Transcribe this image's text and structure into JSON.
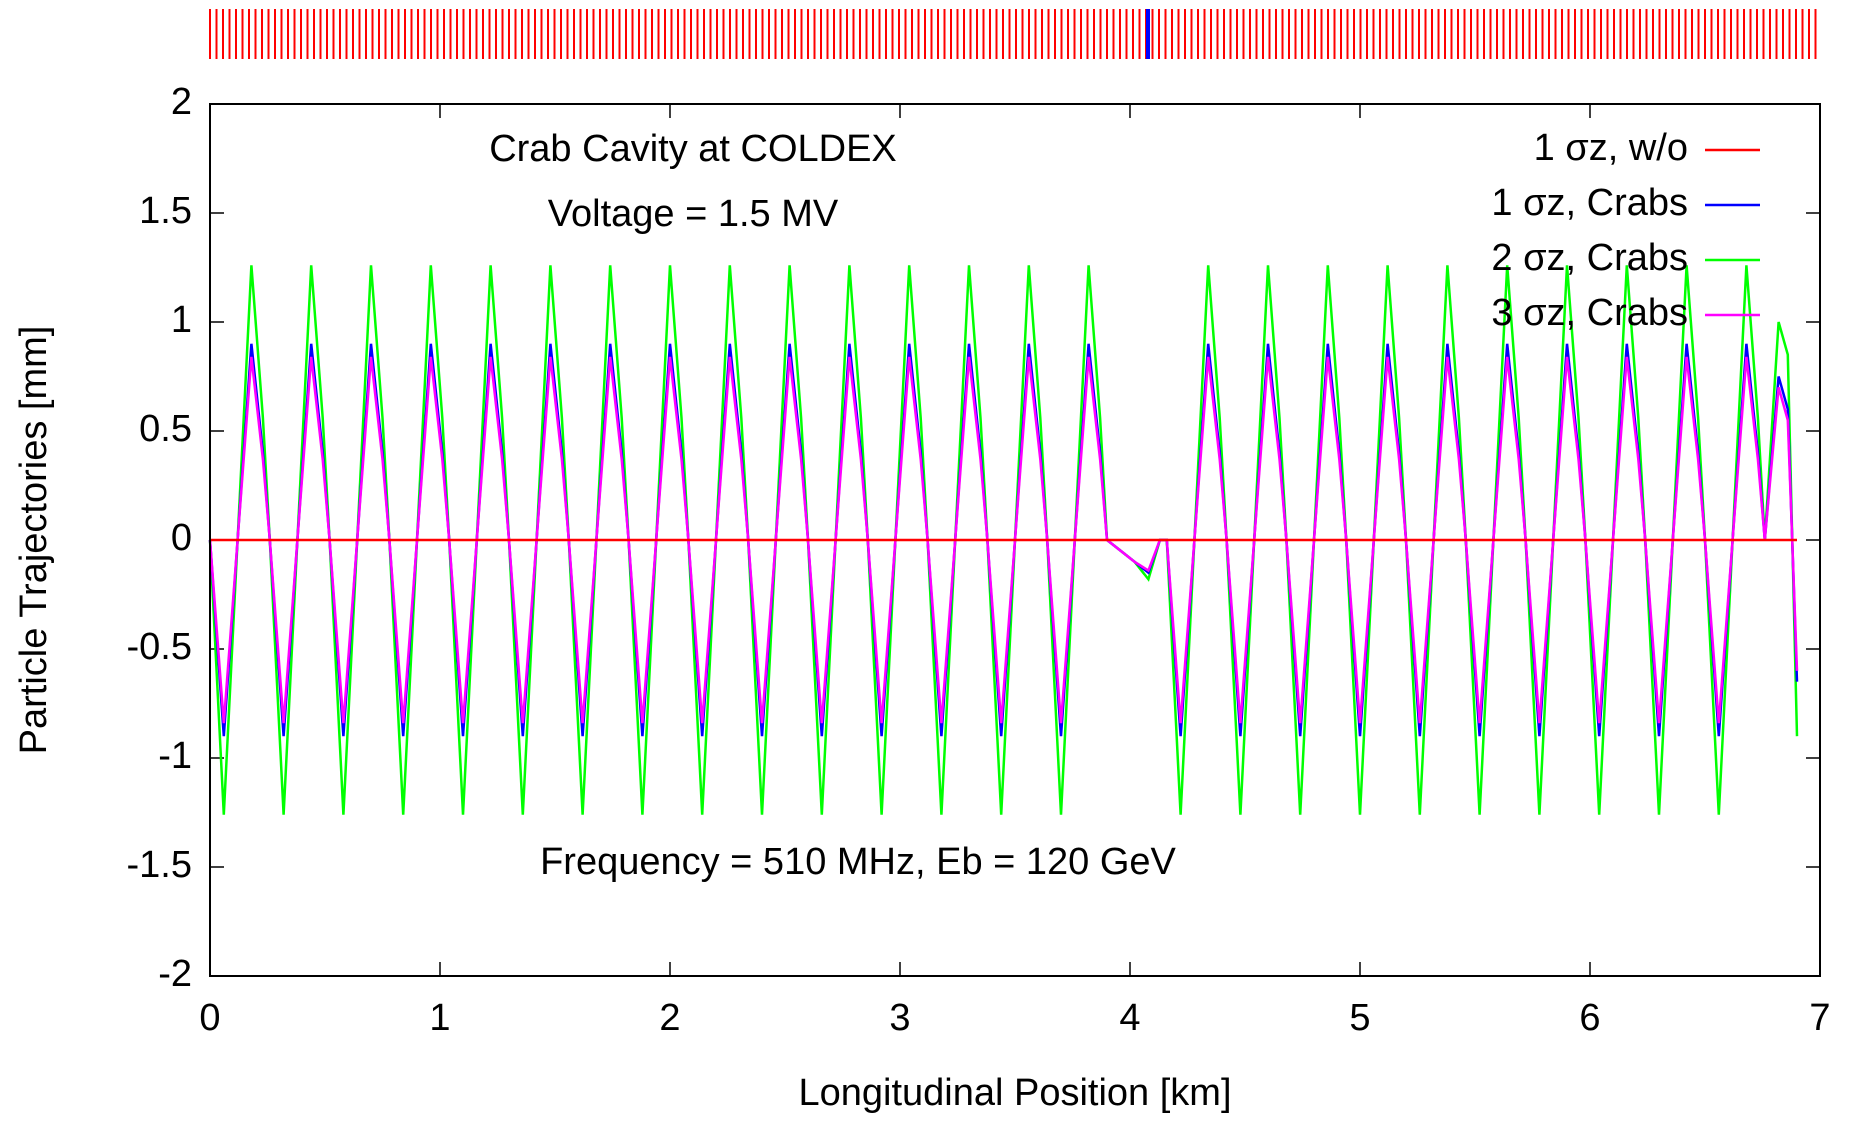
{
  "chart_data": {
    "type": "line",
    "xlabel": "Longitudinal Position [km]",
    "ylabel": "Particle Trajectories [mm]",
    "annotations": [
      "Crab Cavity at COLDEX",
      "Voltage = 1.5 MV",
      "Frequency = 510 MHz, Eb = 120 GeV"
    ],
    "xlim": [
      0,
      7
    ],
    "xticks": [
      0,
      1,
      2,
      3,
      4,
      5,
      6,
      7
    ],
    "ylim": [
      -2,
      2
    ],
    "yticks": [
      -2,
      -1.5,
      -1,
      -0.5,
      0,
      0.5,
      1,
      1.5,
      2
    ],
    "legend": "top-right",
    "grid": false,
    "x": [
      0,
      0.06,
      0.12,
      0.18,
      0.23,
      0.26,
      0.32,
      0.38,
      0.44,
      0.49,
      0.52,
      0.58,
      0.64,
      0.7,
      0.75,
      0.78,
      0.84,
      0.9,
      0.96,
      1.01,
      1.04,
      1.1,
      1.16,
      1.22,
      1.27,
      1.3,
      1.36,
      1.42,
      1.48,
      1.53,
      1.56,
      1.62,
      1.68,
      1.74,
      1.79,
      1.82,
      1.88,
      1.94,
      2,
      2.05,
      2.08,
      2.14,
      2.2,
      2.26,
      2.31,
      2.34,
      2.4,
      2.46,
      2.52,
      2.57,
      2.6,
      2.66,
      2.72,
      2.78,
      2.83,
      2.86,
      2.92,
      2.98,
      3.04,
      3.09,
      3.12,
      3.18,
      3.24,
      3.3,
      3.35,
      3.38,
      3.44,
      3.5,
      3.56,
      3.61,
      3.64,
      3.7,
      3.76,
      3.82,
      3.87,
      3.9,
      3.96,
      4.02,
      4.08,
      4.13,
      4.16,
      4.22,
      4.28,
      4.34,
      4.39,
      4.42,
      4.48,
      4.54,
      4.6,
      4.65,
      4.68,
      4.74,
      4.8,
      4.86,
      4.91,
      4.94,
      5,
      5.06,
      5.12,
      5.17,
      5.2,
      5.26,
      5.32,
      5.38,
      5.43,
      5.46,
      5.52,
      5.58,
      5.64,
      5.69,
      5.72,
      5.78,
      5.84,
      5.9,
      5.95,
      5.98,
      6.04,
      6.1,
      6.16,
      6.21,
      6.24,
      6.3,
      6.36,
      6.42,
      6.47,
      6.5,
      6.56,
      6.62,
      6.68,
      6.73,
      6.76,
      6.82,
      6.86,
      6.9
    ],
    "series": [
      {
        "name": "1 σz, w/o",
        "color": "#ff0000",
        "values": [
          0,
          0,
          0,
          0,
          0,
          0,
          0,
          0,
          0,
          0,
          0,
          0,
          0,
          0,
          0,
          0,
          0,
          0,
          0,
          0,
          0,
          0,
          0,
          0,
          0,
          0,
          0,
          0,
          0,
          0,
          0,
          0,
          0,
          0,
          0,
          0,
          0,
          0,
          0,
          0,
          0,
          0,
          0,
          0,
          0,
          0,
          0,
          0,
          0,
          0,
          0,
          0,
          0,
          0,
          0,
          0,
          0,
          0,
          0,
          0,
          0,
          0,
          0,
          0,
          0,
          0,
          0,
          0,
          0,
          0,
          0,
          0,
          0,
          0,
          0,
          0,
          0,
          0,
          0,
          0,
          0,
          0,
          0,
          0,
          0,
          0,
          0,
          0,
          0,
          0,
          0,
          0,
          0,
          0,
          0,
          0,
          0,
          0,
          0,
          0,
          0,
          0,
          0,
          0,
          0,
          0,
          0,
          0,
          0,
          0,
          0,
          0,
          0,
          0,
          0,
          0,
          0,
          0,
          0,
          0,
          0,
          0,
          0,
          0,
          0,
          0,
          0,
          0,
          0,
          0,
          0,
          0,
          0,
          0
        ]
      },
      {
        "name": "2 σz, Crabs",
        "color": "#00ff00",
        "values": [
          0,
          -1.26,
          0,
          1.26,
          0.56,
          0,
          -1.26,
          0,
          1.26,
          0.56,
          0,
          -1.26,
          0,
          1.26,
          0.56,
          0,
          -1.26,
          0,
          1.26,
          0.56,
          0,
          -1.26,
          0,
          1.26,
          0.56,
          0,
          -1.26,
          0,
          1.26,
          0.56,
          0,
          -1.26,
          0,
          1.26,
          0.56,
          0,
          -1.26,
          0,
          1.26,
          0.56,
          0,
          -1.26,
          0,
          1.26,
          0.56,
          0,
          -1.26,
          0,
          1.26,
          0.56,
          0,
          -1.26,
          0,
          1.26,
          0.56,
          0,
          -1.26,
          0,
          1.26,
          0.56,
          0,
          -1.26,
          0,
          1.26,
          0.56,
          0,
          -1.26,
          0,
          1.26,
          0.56,
          0,
          -1.26,
          0,
          1.26,
          0.56,
          0,
          -0.05,
          -0.1,
          -0.18,
          0,
          0,
          -1.26,
          0,
          1.26,
          0.56,
          0,
          -1.26,
          0,
          1.26,
          0.56,
          0,
          -1.26,
          0,
          1.26,
          0.56,
          0,
          -1.26,
          0,
          1.26,
          0.56,
          0,
          -1.26,
          0,
          1.26,
          0.56,
          0,
          -1.26,
          0,
          1.26,
          0.56,
          0,
          -1.26,
          0,
          1.26,
          0.56,
          0,
          -1.26,
          0,
          1.26,
          0.56,
          0,
          -1.26,
          0,
          1.26,
          0.56,
          0,
          -1.26,
          0,
          1.26,
          0.56,
          0,
          1.0,
          0.85,
          -0.9
        ]
      },
      {
        "name": "1 σz, Crabs",
        "color": "#0000ff",
        "values": [
          0,
          -0.9,
          0,
          0.9,
          0.4,
          0,
          -0.9,
          0,
          0.9,
          0.4,
          0,
          -0.9,
          0,
          0.9,
          0.4,
          0,
          -0.9,
          0,
          0.9,
          0.4,
          0,
          -0.9,
          0,
          0.9,
          0.4,
          0,
          -0.9,
          0,
          0.9,
          0.4,
          0,
          -0.9,
          0,
          0.9,
          0.4,
          0,
          -0.9,
          0,
          0.9,
          0.4,
          0,
          -0.9,
          0,
          0.9,
          0.4,
          0,
          -0.9,
          0,
          0.9,
          0.4,
          0,
          -0.9,
          0,
          0.9,
          0.4,
          0,
          -0.9,
          0,
          0.9,
          0.4,
          0,
          -0.9,
          0,
          0.9,
          0.4,
          0,
          -0.9,
          0,
          0.9,
          0.4,
          0,
          -0.9,
          0,
          0.9,
          0.4,
          0,
          -0.05,
          -0.1,
          -0.15,
          0,
          0,
          -0.9,
          0,
          0.9,
          0.4,
          0,
          -0.9,
          0,
          0.9,
          0.4,
          0,
          -0.9,
          0,
          0.9,
          0.4,
          0,
          -0.9,
          0,
          0.9,
          0.4,
          0,
          -0.9,
          0,
          0.9,
          0.4,
          0,
          -0.9,
          0,
          0.9,
          0.4,
          0,
          -0.9,
          0,
          0.9,
          0.4,
          0,
          -0.9,
          0,
          0.9,
          0.4,
          0,
          -0.9,
          0,
          0.9,
          0.4,
          0,
          -0.9,
          0,
          0.9,
          0.4,
          0,
          0.75,
          0.6,
          -0.65
        ]
      },
      {
        "name": "3 σz, Crabs",
        "color": "#ff00ff",
        "values": [
          0,
          -0.84,
          0,
          0.84,
          0.37,
          0,
          -0.84,
          0,
          0.84,
          0.37,
          0,
          -0.84,
          0,
          0.84,
          0.37,
          0,
          -0.84,
          0,
          0.84,
          0.37,
          0,
          -0.84,
          0,
          0.84,
          0.37,
          0,
          -0.84,
          0,
          0.84,
          0.37,
          0,
          -0.84,
          0,
          0.84,
          0.37,
          0,
          -0.84,
          0,
          0.84,
          0.37,
          0,
          -0.84,
          0,
          0.84,
          0.37,
          0,
          -0.84,
          0,
          0.84,
          0.37,
          0,
          -0.84,
          0,
          0.84,
          0.37,
          0,
          -0.84,
          0,
          0.84,
          0.37,
          0,
          -0.84,
          0,
          0.84,
          0.37,
          0,
          -0.84,
          0,
          0.84,
          0.37,
          0,
          -0.84,
          0,
          0.84,
          0.37,
          0,
          -0.05,
          -0.1,
          -0.14,
          0,
          0,
          -0.84,
          0,
          0.84,
          0.37,
          0,
          -0.84,
          0,
          0.84,
          0.37,
          0,
          -0.84,
          0,
          0.84,
          0.37,
          0,
          -0.84,
          0,
          0.84,
          0.37,
          0,
          -0.84,
          0,
          0.84,
          0.37,
          0,
          -0.84,
          0,
          0.84,
          0.37,
          0,
          -0.84,
          0,
          0.84,
          0.37,
          0,
          -0.84,
          0,
          0.84,
          0.37,
          0,
          -0.84,
          0,
          0.84,
          0.37,
          0,
          -0.84,
          0,
          0.84,
          0.37,
          0,
          0.7,
          0.55,
          -0.6
        ]
      }
    ],
    "legend_order": [
      0,
      2,
      1,
      3
    ]
  }
}
